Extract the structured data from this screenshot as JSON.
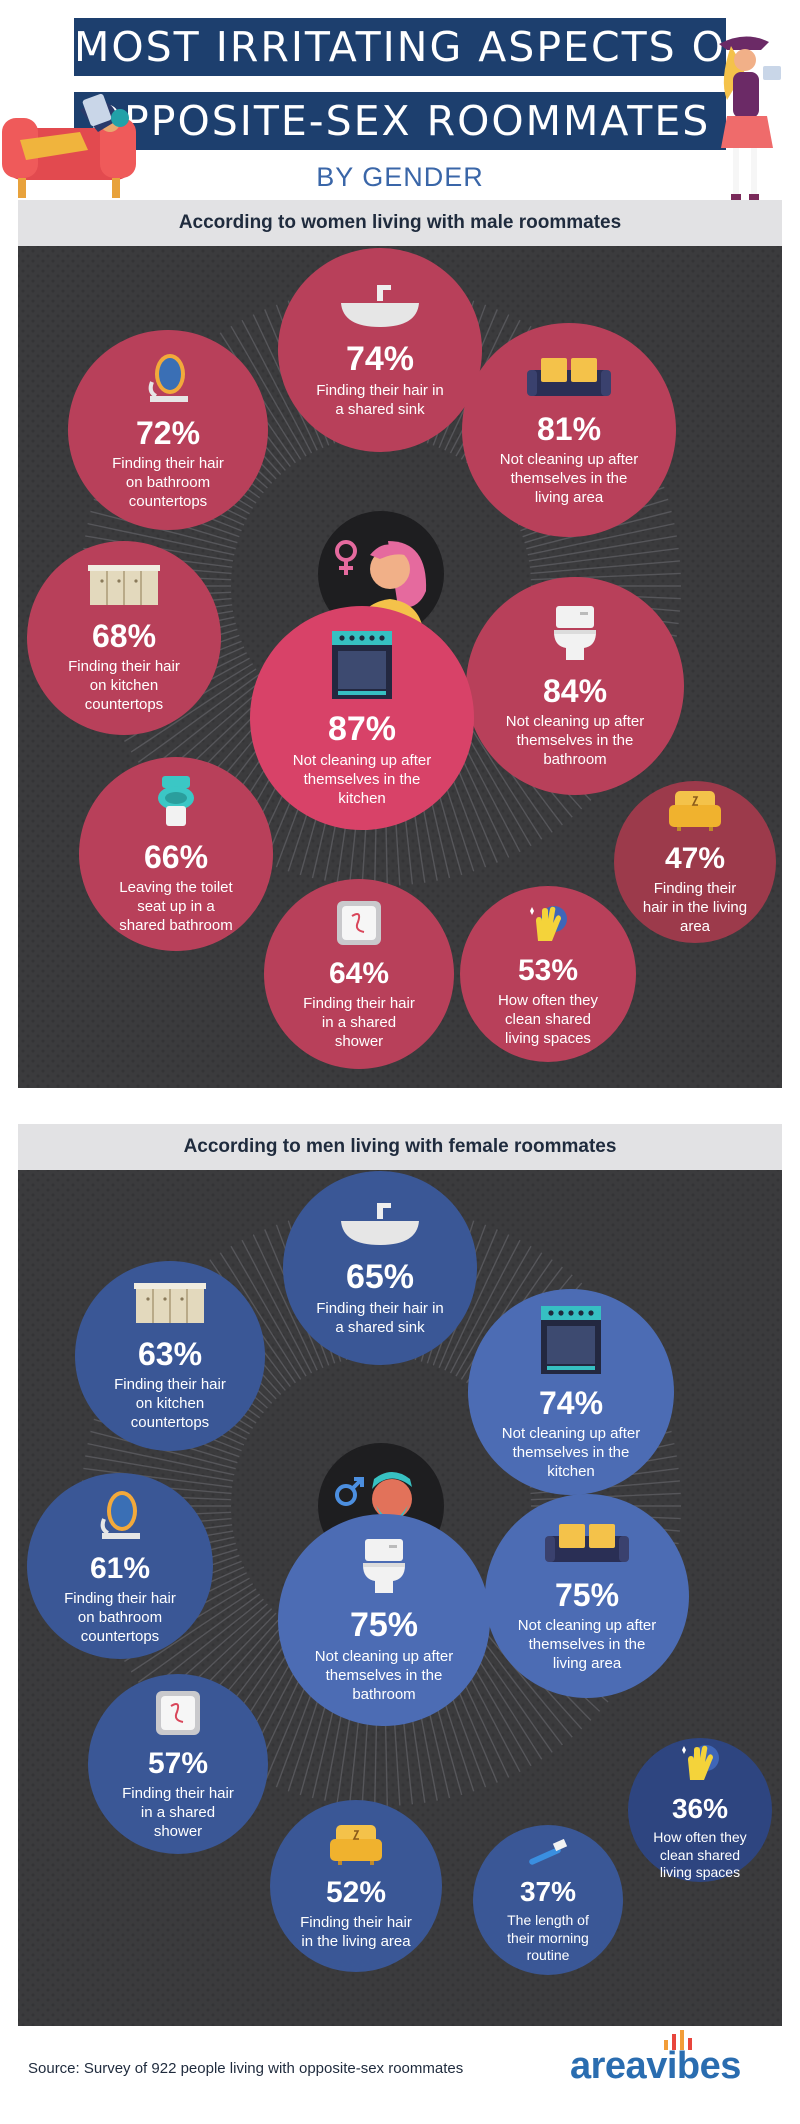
{
  "header": {
    "title_line1": "Most irritating aspects of",
    "title_line2": "opposite-sex roommates",
    "subtitle": "BY GENDER"
  },
  "women": {
    "heading": "According to women living with male roommates",
    "items": [
      {
        "pct": "74%",
        "label": "Finding their hair in a shared sink",
        "icon": "sink-icon"
      },
      {
        "pct": "72%",
        "label": "Finding their hair on bathroom countertops",
        "icon": "mirror-icon"
      },
      {
        "pct": "81%",
        "label": "Not cleaning up after themselves in the living area",
        "icon": "sofa-icon"
      },
      {
        "pct": "68%",
        "label": "Finding their hair on kitchen countertops",
        "icon": "cabinet-icon"
      },
      {
        "pct": "84%",
        "label": "Not cleaning up after themselves in the bathroom",
        "icon": "toilet-icon"
      },
      {
        "pct": "87%",
        "label": "Not cleaning up after themselves in the kitchen",
        "icon": "stove-icon"
      },
      {
        "pct": "66%",
        "label": "Leaving the toilet seat up in a shared bathroom",
        "icon": "toilet-seat-icon"
      },
      {
        "pct": "47%",
        "label": "Finding their hair in the living area",
        "icon": "armchair-icon"
      },
      {
        "pct": "64%",
        "label": "Finding their hair in a shared shower",
        "icon": "shower-tile-icon"
      },
      {
        "pct": "53%",
        "label": "How often they clean shared living spaces",
        "icon": "glove-icon"
      }
    ]
  },
  "men": {
    "heading": "According to men living with female roommates",
    "items": [
      {
        "pct": "65%",
        "label": "Finding their hair in a shared sink",
        "icon": "sink-icon"
      },
      {
        "pct": "63%",
        "label": "Finding their hair on kitchen countertops",
        "icon": "cabinet-icon"
      },
      {
        "pct": "74%",
        "label": "Not cleaning up after themselves in the kitchen",
        "icon": "stove-icon"
      },
      {
        "pct": "61%",
        "label": "Finding their hair on bathroom countertops",
        "icon": "mirror-icon"
      },
      {
        "pct": "75%",
        "label": "Not cleaning up after themselves in the bathroom",
        "icon": "toilet-icon"
      },
      {
        "pct": "75%",
        "label": "Not cleaning up after themselves in the living area",
        "icon": "sofa-icon"
      },
      {
        "pct": "57%",
        "label": "Finding their hair in a shared shower",
        "icon": "shower-tile-icon"
      },
      {
        "pct": "36%",
        "label": "How often they clean shared living spaces",
        "icon": "glove-icon"
      },
      {
        "pct": "52%",
        "label": "Finding their hair in the living area",
        "icon": "armchair-icon"
      },
      {
        "pct": "37%",
        "label": "The length of their morning routine",
        "icon": "toothbrush-icon"
      }
    ]
  },
  "footer": {
    "source": "Source: Survey of 922 people living with opposite-sex roommates",
    "logo": "areavibes"
  },
  "colors": {
    "title_bg": "#1d3f6e",
    "women_circle_primary": "#b8405a",
    "women_circle_highlight": "#d84268",
    "women_circle_dark": "#9c3a4b",
    "men_circle_primary": "#3a5796",
    "men_circle_highlight": "#4c6cb4",
    "men_circle_dark": "#2e4580",
    "panel_bg": "#3b3b3d",
    "header_bar": "#e2e2e4"
  }
}
